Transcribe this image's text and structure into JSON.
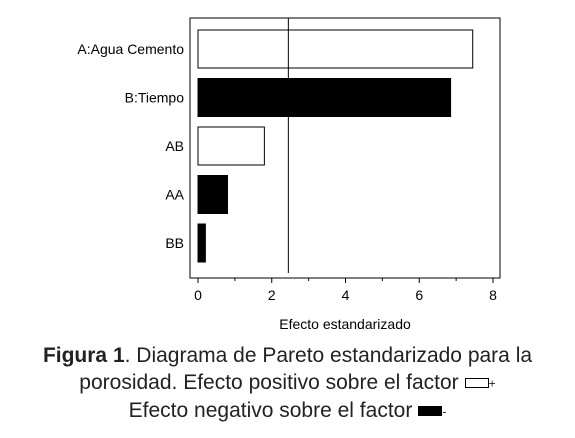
{
  "chart_data": {
    "type": "bar",
    "orientation": "horizontal",
    "categories": [
      "A:Agua Cemento",
      "B:Tiempo",
      "AB",
      "AA",
      "BB"
    ],
    "values": [
      7.45,
      6.85,
      1.8,
      0.8,
      0.2
    ],
    "effect_sign": [
      "positive",
      "negative",
      "positive",
      "negative",
      "negative"
    ],
    "xlabel": "Efecto estandarizado",
    "xlim": [
      0,
      8
    ],
    "xticks": [
      "0",
      "2",
      "4",
      "6",
      "8"
    ],
    "reference_line": 2.45,
    "grid": false
  },
  "caption": {
    "label": "Figura 1",
    "line1_rest": ". Diagrama de Pareto estandarizado para la",
    "line2": "porosidad. Efecto positivo sobre el factor",
    "positive_sign": "+",
    "line3": "Efecto negativo sobre el factor",
    "negative_sign": "-"
  },
  "colors": {
    "positive_fill": "#ffffff",
    "negative_fill": "#000000",
    "stroke": "#000000"
  }
}
